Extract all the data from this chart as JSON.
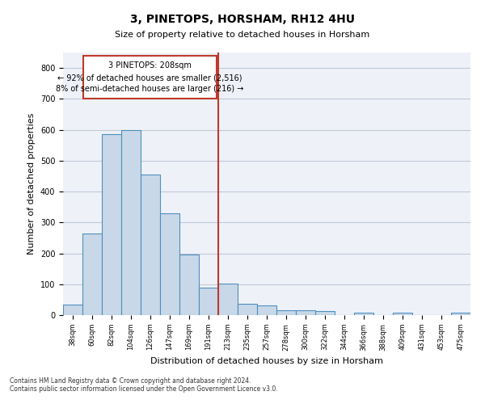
{
  "title": "3, PINETOPS, HORSHAM, RH12 4HU",
  "subtitle": "Size of property relative to detached houses in Horsham",
  "xlabel": "Distribution of detached houses by size in Horsham",
  "ylabel": "Number of detached properties",
  "categories": [
    "38sqm",
    "60sqm",
    "82sqm",
    "104sqm",
    "126sqm",
    "147sqm",
    "169sqm",
    "191sqm",
    "213sqm",
    "235sqm",
    "257sqm",
    "278sqm",
    "300sqm",
    "322sqm",
    "344sqm",
    "366sqm",
    "388sqm",
    "409sqm",
    "431sqm",
    "453sqm",
    "475sqm"
  ],
  "values": [
    35,
    265,
    585,
    600,
    455,
    330,
    195,
    90,
    102,
    37,
    32,
    17,
    17,
    12,
    0,
    7,
    0,
    8,
    0,
    0,
    7
  ],
  "bar_color": "#c8d8e8",
  "bar_edge_color": "#4f8fbf",
  "vline_color": "#c0392b",
  "annotation_text_line1": "3 PINETOPS: 208sqm",
  "annotation_text_line2": "← 92% of detached houses are smaller (2,516)",
  "annotation_text_line3": "8% of semi-detached houses are larger (216) →",
  "annotation_box_color": "#c0392b",
  "ylim": [
    0,
    850
  ],
  "yticks": [
    0,
    100,
    200,
    300,
    400,
    500,
    600,
    700,
    800
  ],
  "grid_color": "#c0c8d8",
  "bg_color": "#eef2f8",
  "footer_line1": "Contains HM Land Registry data © Crown copyright and database right 2024.",
  "footer_line2": "Contains public sector information licensed under the Open Government Licence v3.0."
}
